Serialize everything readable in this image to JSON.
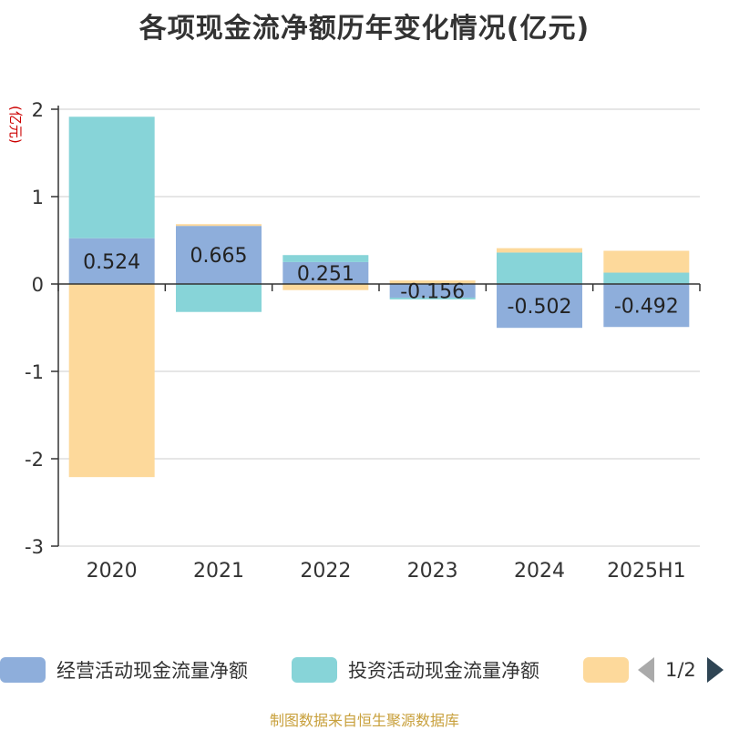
{
  "title": "各项现金流净额历年变化情况(亿元)",
  "source": "制图数据来自恒生聚源数据库",
  "colors": {
    "operating": "#8eaedb",
    "investing": "#87d4d8",
    "financing": "#fdd99b",
    "label": "#222222",
    "source": "#c8a03c",
    "axis_unit": "#cc0000"
  },
  "legend": {
    "items": [
      {
        "label": "经营活动现金流量净额",
        "color": "#8eaedb"
      },
      {
        "label": "投资活动现金流量净额",
        "color": "#87d4d8"
      },
      {
        "label": "",
        "color": "#fdd99b"
      }
    ],
    "pager_text": "1/2"
  },
  "chart_data": {
    "type": "bar",
    "stacked": true,
    "categories": [
      "2020",
      "2021",
      "2022",
      "2023",
      "2024",
      "2025H1"
    ],
    "series": [
      {
        "name": "经营活动现金流量净额",
        "values": [
          0.524,
          0.665,
          0.251,
          -0.156,
          -0.502,
          -0.492
        ],
        "show_labels": true
      },
      {
        "name": "投资活动现金流量净额",
        "values": [
          1.39,
          -0.32,
          0.08,
          -0.02,
          0.36,
          0.13
        ]
      },
      {
        "values": [
          -2.21,
          0.02,
          -0.07,
          0.04,
          0.05,
          0.25
        ]
      }
    ],
    "ylabel": "(亿元)",
    "ylim": [
      -3,
      2
    ],
    "yticks": [
      2,
      1,
      0,
      -1,
      -2,
      -3
    ],
    "grid": true,
    "legend_position": "bottom"
  }
}
